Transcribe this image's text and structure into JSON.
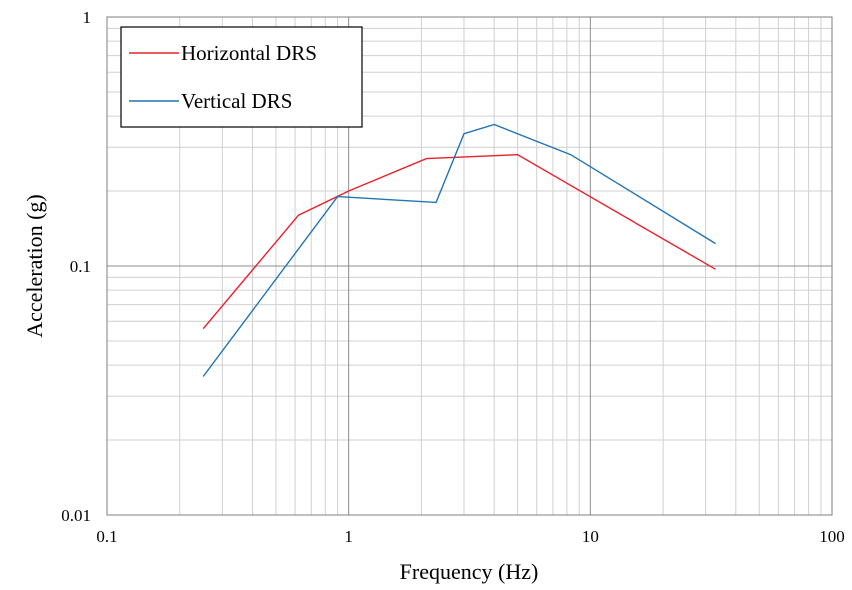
{
  "chart_data": {
    "type": "line",
    "title": "",
    "xlabel": "Frequency (Hz)",
    "ylabel": "Acceleration (g)",
    "xscale": "log",
    "yscale": "log",
    "xlim": [
      0.1,
      100
    ],
    "ylim": [
      0.01,
      1
    ],
    "x_tick_labels": [
      "0.1",
      "1",
      "10",
      "100"
    ],
    "y_tick_labels": [
      "0.01",
      "0.1",
      "1"
    ],
    "grid": true,
    "legend_position": "top-left",
    "series": [
      {
        "name": "Horizontal DRS",
        "color": "#e8202a",
        "x": [
          0.25,
          0.62,
          1.0,
          2.1,
          5.0,
          33.0
        ],
        "y": [
          0.056,
          0.16,
          0.2,
          0.27,
          0.28,
          0.097
        ]
      },
      {
        "name": "Vertical DRS",
        "color": "#2274b5",
        "x": [
          0.25,
          0.9,
          2.3,
          3.0,
          4.0,
          8.3,
          33.0
        ],
        "y": [
          0.036,
          0.19,
          0.18,
          0.34,
          0.37,
          0.28,
          0.123
        ]
      }
    ]
  }
}
